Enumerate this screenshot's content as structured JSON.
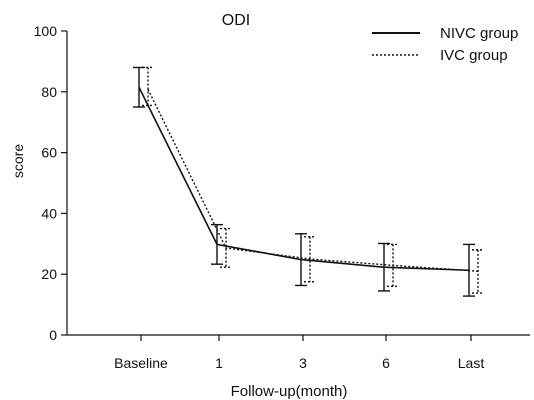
{
  "chart_data": {
    "type": "line",
    "title": "ODI",
    "xlabel": "Follow-up(month)",
    "ylabel": "score",
    "categories": [
      "Baseline",
      "1",
      "3",
      "6",
      "Last"
    ],
    "ylim": [
      0,
      100
    ],
    "yticks": [
      0,
      20,
      40,
      60,
      80,
      100
    ],
    "grid": false,
    "legend_position": "top-right",
    "series": [
      {
        "name": "NIVC group",
        "line_style": "solid",
        "color": "#111111",
        "values": [
          81.5,
          29.8,
          24.8,
          22.3,
          21.3
        ],
        "error_low": [
          75.0,
          23.3,
          16.3,
          14.5,
          12.8
        ],
        "error_high": [
          88.0,
          36.3,
          33.3,
          30.1,
          29.8
        ]
      },
      {
        "name": "IVC group",
        "line_style": "dotted",
        "color": "#111111",
        "values": [
          80.8,
          28.6,
          25.0,
          22.9,
          21.0
        ],
        "error_low": [
          75.5,
          22.3,
          17.5,
          16.0,
          13.8
        ],
        "error_high": [
          88.0,
          35.0,
          32.3,
          29.8,
          28.0
        ]
      }
    ]
  }
}
